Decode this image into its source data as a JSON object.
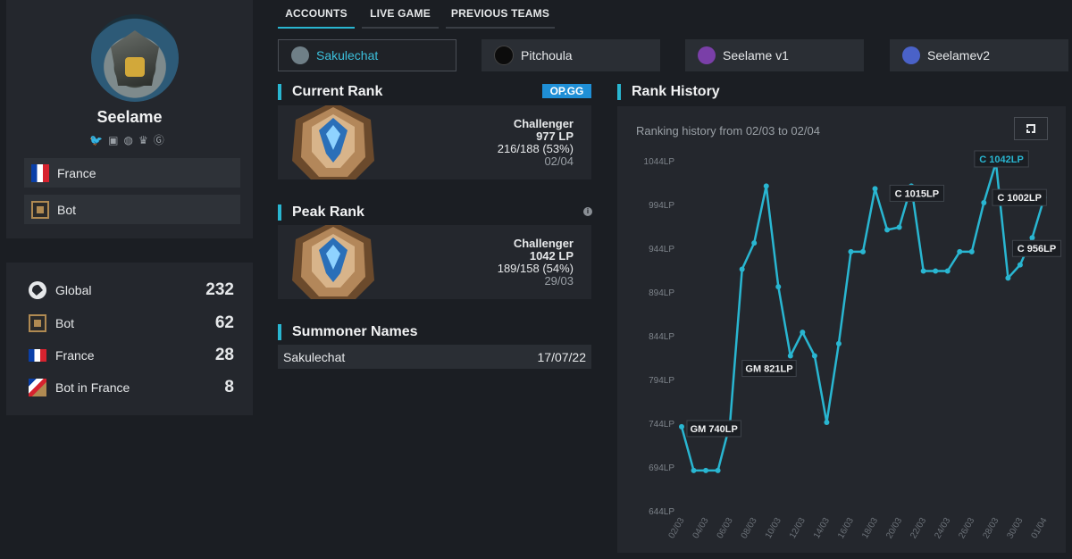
{
  "profile": {
    "name": "Seelame",
    "socials": [
      "twitter-icon",
      "twitch-icon",
      "discord-icon",
      "trophy-icon",
      "g-icon"
    ],
    "tags": [
      {
        "label": "France",
        "icon": "france-flag-icon"
      },
      {
        "label": "Bot",
        "icon": "bot-role-icon"
      }
    ]
  },
  "rankings": [
    {
      "label": "Global",
      "value": "232",
      "icon": "globe-icon"
    },
    {
      "label": "Bot",
      "value": "62",
      "icon": "bot-role-icon"
    },
    {
      "label": "France",
      "value": "28",
      "icon": "france-flag-icon"
    },
    {
      "label": "Bot in France",
      "value": "8",
      "icon": "bot-france-icon"
    }
  ],
  "tabs": [
    {
      "label": "ACCOUNTS",
      "active": true
    },
    {
      "label": "LIVE GAME",
      "active": false
    },
    {
      "label": "PREVIOUS TEAMS",
      "active": false
    }
  ],
  "accounts": [
    {
      "label": "Sakulechat",
      "active": true,
      "color": "#6f7f87"
    },
    {
      "label": "Pitchoula",
      "active": false,
      "color": "#0c0c0c"
    },
    {
      "label": "Seelame v1",
      "active": false,
      "color": "#7a3fa8"
    },
    {
      "label": "Seelamev2",
      "active": false,
      "color": "#4a62c8"
    }
  ],
  "current_rank": {
    "title": "Current Rank",
    "badge": "OP.GG",
    "tier": "Challenger",
    "lp": "977 LP",
    "record": "216/188 (53%)",
    "date": "02/04"
  },
  "peak_rank": {
    "title": "Peak Rank",
    "info": "i",
    "tier": "Challenger",
    "lp": "1042 LP",
    "record": "189/158 (54%)",
    "date": "29/03"
  },
  "summoner_names": {
    "title": "Summoner Names",
    "rows": [
      {
        "name": "Sakulechat",
        "date": "17/07/22"
      }
    ]
  },
  "rank_history": {
    "title": "Rank History",
    "caption": "Ranking history from 02/03 to 02/04"
  },
  "colors": {
    "accent": "#29b6d1",
    "badge": "#1f8fd6"
  },
  "chart_data": {
    "type": "line",
    "y_ticks": [
      "1044LP",
      "994LP",
      "944LP",
      "894LP",
      "844LP",
      "794LP",
      "744LP",
      "694LP",
      "644LP"
    ],
    "ylim": [
      644,
      1044
    ],
    "x_labels": [
      "02/03",
      "04/03",
      "06/03",
      "08/03",
      "10/03",
      "12/03",
      "14/03",
      "16/03",
      "18/03",
      "20/03",
      "22/03",
      "24/03",
      "26/03",
      "28/03",
      "30/03",
      "01/04"
    ],
    "x_label_index": [
      0,
      2,
      4,
      6,
      8,
      10,
      12,
      14,
      16,
      18,
      20,
      22,
      24,
      26,
      28,
      30
    ],
    "series": [
      {
        "values": [
          740,
          690,
          690,
          690,
          743,
          920,
          950,
          1015,
          900,
          821,
          848,
          821,
          745,
          835,
          940,
          940,
          1012,
          965,
          968,
          1015,
          918,
          918,
          918,
          940,
          940,
          996,
          1042,
          910,
          925,
          956,
          1002
        ]
      }
    ],
    "annotations": [
      {
        "text": "GM 740LP",
        "index": 0,
        "highlight": false,
        "dx": 6,
        "dy": 2
      },
      {
        "text": "GM 821LP",
        "index": 9,
        "highlight": false,
        "dx": -54,
        "dy": 14
      },
      {
        "text": "C 1015LP",
        "index": 19,
        "highlight": false,
        "dx": -24,
        "dy": 8
      },
      {
        "text": "C 1042LP",
        "index": 26,
        "highlight": true,
        "dx": -24,
        "dy": -4
      },
      {
        "text": "C 1002LP",
        "index": 30,
        "highlight": false,
        "dx": -58,
        "dy": 0
      },
      {
        "text": "C 956LP",
        "index": 29,
        "highlight": false,
        "dx": -22,
        "dy": 12
      }
    ]
  }
}
